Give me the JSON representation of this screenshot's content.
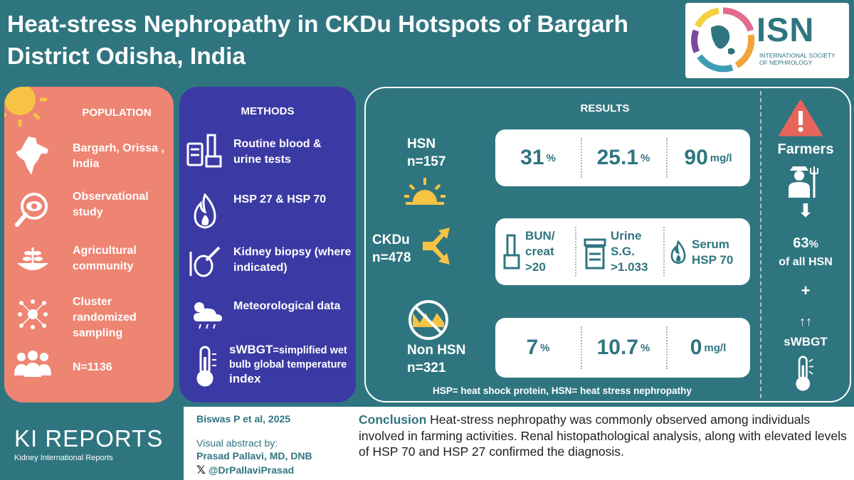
{
  "header": {
    "title": "Heat-stress Nephropathy in CKDu Hotspots of Bargarh District Odisha, India",
    "logo_abbr": "ISN",
    "logo_line1": "INTERNATIONAL SOCIETY",
    "logo_line2": "OF NEPHROLOGY"
  },
  "population": {
    "title": "POPULATION",
    "items": [
      {
        "label": "Bargarh, Orissa , India",
        "icon": "india-map-icon"
      },
      {
        "label": "Observational study",
        "icon": "eye-magnifier-icon"
      },
      {
        "label": "Agricultural community",
        "icon": "crop-icon"
      },
      {
        "label": "Cluster randomized sampling",
        "icon": "cluster-icon"
      },
      {
        "label": "N=1136",
        "icon": "people-icon"
      }
    ]
  },
  "methods": {
    "title": "METHODS",
    "items": [
      {
        "label": "Routine blood & urine tests",
        "icon": "lab-tubes-icon"
      },
      {
        "label": "HSP 27 & HSP 70",
        "icon": "flame-icon"
      },
      {
        "label": "Kidney biopsy (where indicated)",
        "icon": "biopsy-icon"
      },
      {
        "label": "Meteorological data",
        "icon": "weather-icon"
      }
    ],
    "wbgt_abbr": "sWBGT",
    "wbgt_desc": "=simplified wet bulb global temperature",
    "wbgt_last": "index"
  },
  "results": {
    "title": "RESULTS",
    "groups": {
      "hsn": {
        "name": "HSN",
        "n": "n=157"
      },
      "ckdu": {
        "name": "CKDu",
        "n": "n=478"
      },
      "non_hsn": {
        "name": "Non HSN",
        "n": "n=321"
      }
    },
    "hsn_values": [
      {
        "value": "31",
        "unit": "%"
      },
      {
        "value": "25.1",
        "unit": "%"
      },
      {
        "value": "90",
        "unit": "mg/l"
      }
    ],
    "criteria": [
      {
        "line1": "BUN/",
        "line2": "creat",
        "line3": ">20"
      },
      {
        "line1": "Urine",
        "line2": "S.G.",
        "line3": ">1.033"
      },
      {
        "line1": "Serum",
        "line2": "HSP 70",
        "line3": ""
      }
    ],
    "non_hsn_values": [
      {
        "value": "7",
        "unit": "%"
      },
      {
        "value": "10.7",
        "unit": "%"
      },
      {
        "value": "0",
        "unit": "mg/l"
      }
    ],
    "footnote": "HSP= heat shock protein, HSN= heat stress nephropathy"
  },
  "farmers": {
    "title": "Farmers",
    "arrow": "⬇",
    "pct_value": "63",
    "pct_unit": "%",
    "pct_label": "of all HSN",
    "plus": "+",
    "up_arrows": "↑↑",
    "wbgt": "sWBGT"
  },
  "footer": {
    "journal": "KI REPORTS",
    "journal_sub": "Kidney International Reports",
    "citation": "Biswas P et al, 2025",
    "va_label": "Visual abstract by:",
    "author": "Prasad Pallavi, MD, DNB",
    "handle": "@DrPallaviPrasad",
    "conclusion_head": "Conclusion",
    "conclusion": "Heat-stress nephropathy was commonly observed among individuals involved in farming activities. Renal histopathological analysis, along with elevated levels of HSP 70 and HSP 27 confirmed the diagnosis."
  },
  "colors": {
    "teal": "#2f7580",
    "salmon": "#ee8472",
    "indigo": "#3b3aa4",
    "sun": "#f7c344",
    "warning": "#e7645a"
  }
}
